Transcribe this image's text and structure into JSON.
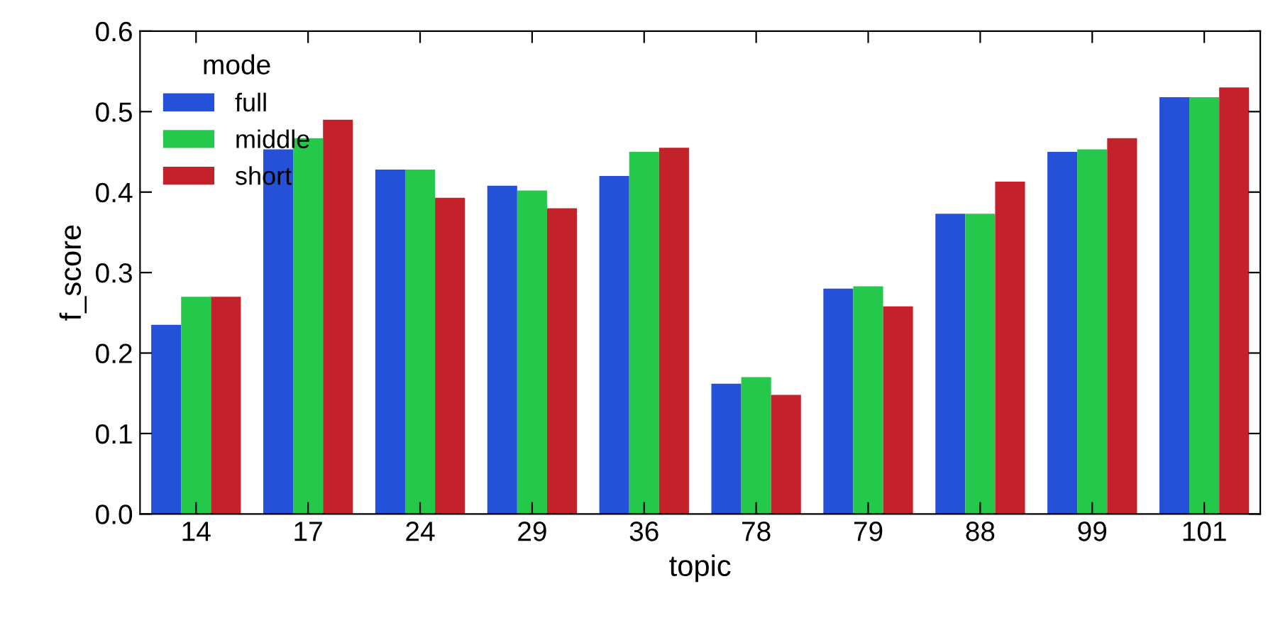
{
  "chart_data": {
    "type": "bar",
    "xlabel": "topic",
    "ylabel": "f_score",
    "legend_title": "mode",
    "legend": "top left",
    "grid": false,
    "categories": [
      "14",
      "17",
      "24",
      "29",
      "36",
      "78",
      "79",
      "88",
      "99",
      "101"
    ],
    "ylim": [
      0,
      0.6
    ],
    "yticks": [
      {
        "value": 0,
        "label": "0.0"
      },
      {
        "value": 0.1,
        "label": "0.1"
      },
      {
        "value": 0.2,
        "label": "0.2"
      },
      {
        "value": 0.3,
        "label": "0.3"
      },
      {
        "value": 0.4,
        "label": "0.4"
      },
      {
        "value": 0.5,
        "label": "0.5"
      },
      {
        "value": 0.6,
        "label": "0.6"
      }
    ],
    "series": [
      {
        "name": "full",
        "color": "#2551d9",
        "values": [
          0.235,
          0.453,
          0.428,
          0.408,
          0.42,
          0.162,
          0.28,
          0.373,
          0.45,
          0.518
        ]
      },
      {
        "name": "middle",
        "color": "#24c94b",
        "values": [
          0.27,
          0.467,
          0.428,
          0.402,
          0.45,
          0.17,
          0.283,
          0.373,
          0.453,
          0.518
        ]
      },
      {
        "name": "short",
        "color": "#c4222b",
        "values": [
          0.27,
          0.49,
          0.393,
          0.38,
          0.455,
          0.148,
          0.258,
          0.413,
          0.467,
          0.53
        ]
      }
    ]
  }
}
